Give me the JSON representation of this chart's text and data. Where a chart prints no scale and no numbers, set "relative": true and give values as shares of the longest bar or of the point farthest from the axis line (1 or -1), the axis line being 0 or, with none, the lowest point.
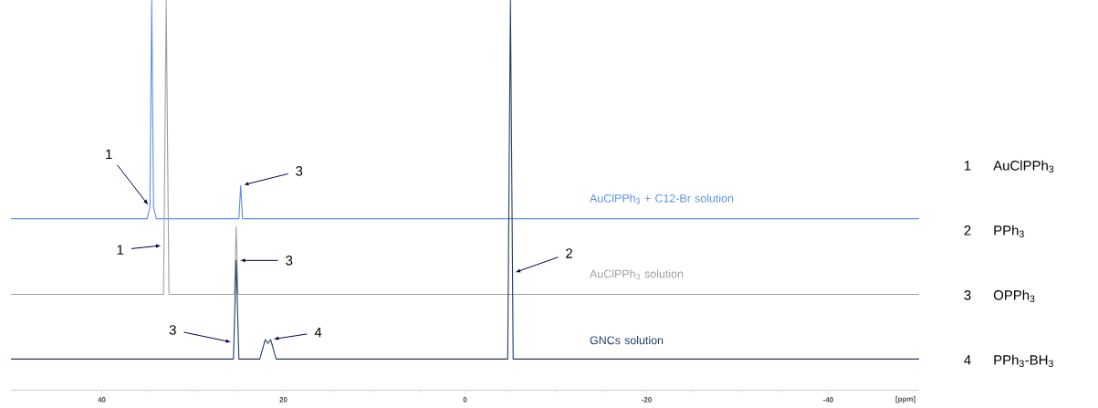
{
  "chart_data": {
    "type": "line",
    "relative": true,
    "xlabel": "[ppm]",
    "xlim": [
      50,
      -50
    ],
    "xticks": [
      40,
      20,
      0,
      -20,
      -40
    ],
    "series": [
      {
        "name": "AuClPPh$_{3}$ + C12-Br solution",
        "color": "#5b8ee6",
        "x": [
          50,
          35.0,
          34.7,
          34.5,
          34.3,
          34.0,
          24.9,
          24.7,
          24.5,
          -50
        ],
        "values": [
          0.44,
          0.44,
          0.47,
          1,
          0.47,
          0.44,
          0.44,
          0.525,
          0.44,
          0.44
        ]
      },
      {
        "name": "AuClPPh$_{3}$ solution",
        "color": "#a0a0a0",
        "x": [
          50,
          33.2,
          33.15,
          32.9,
          32.6,
          25.4,
          25.2,
          25.1,
          25.0,
          -50
        ],
        "values": [
          0.246,
          0.246,
          0.372,
          1,
          0.246,
          0.246,
          0.42,
          0.333,
          0.246,
          0.246
        ]
      },
      {
        "name": "GNCs solution",
        "color": "#1f3d63",
        "x": [
          50,
          25.5,
          25.45,
          25.2,
          24.9,
          22.6,
          22.0,
          21.7,
          21.4,
          20.8,
          -4.7,
          -5.0,
          -5.23,
          -5.3,
          -50
        ],
        "values": [
          0.08,
          0.08,
          0.122,
          0.333,
          0.08,
          0.08,
          0.13,
          0.12,
          0.13,
          0.08,
          0.08,
          1,
          0.3,
          0.08,
          0.08
        ]
      }
    ],
    "annotations": [
      {
        "text": "1",
        "x": 34.7,
        "y": 0.47
      },
      {
        "text": "3",
        "x": 24.7,
        "y": 0.525
      },
      {
        "text": "1",
        "x": 33.15,
        "y": 0.372
      },
      {
        "text": "3",
        "x": 25.1,
        "y": 0.333
      },
      {
        "text": "3",
        "x": 25.45,
        "y": 0.122
      },
      {
        "text": "4",
        "x": 21.4,
        "y": 0.13
      },
      {
        "text": "2",
        "x": -5.23,
        "y": 0.3
      },
      "1",
      "AuClPPh$_{3}$",
      "2",
      "PPh$_{3}$",
      "3",
      "OPPh$_{3}$",
      "4",
      "PPh$_{3}$-BH$_{3}$"
    ]
  }
}
